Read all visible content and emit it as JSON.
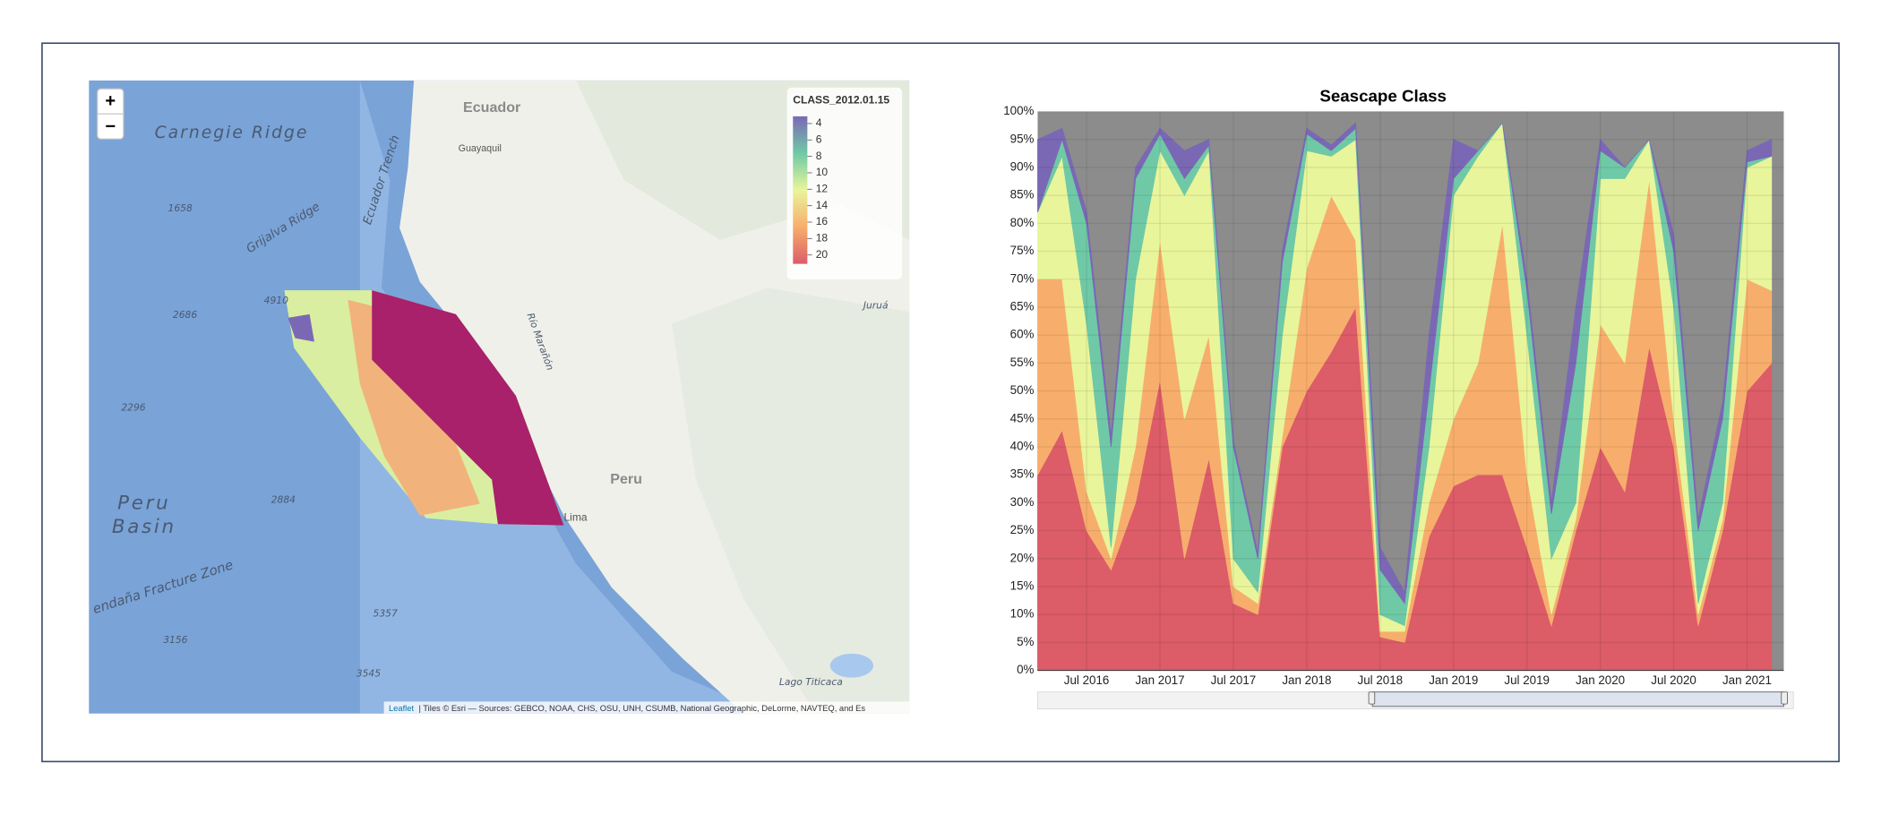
{
  "map": {
    "zoom_in": "+",
    "zoom_out": "−",
    "labels": [
      "Carnegie Ridge",
      "Ecuador",
      "Guayaquil",
      "Grijalva Ridge",
      "Ecuador Trench",
      "Peru",
      "Lima",
      "Peru",
      "Basin",
      "endaña Fracture Zone",
      "Lago Titicaca",
      "Juruá",
      "Río Marañón"
    ],
    "depths": [
      "1658",
      "2686",
      "4910",
      "2296",
      "2884",
      "5357",
      "3156",
      "3545"
    ],
    "legend": {
      "title": "CLASS_2012.01.15",
      "labels": [
        "4",
        "6",
        "8",
        "10",
        "12",
        "14",
        "16",
        "18",
        "20"
      ]
    },
    "attribution_link": "Leaflet",
    "attribution": "| Tiles © Esri — Sources: GEBCO, NOAA, CHS, OSU, UNH, CSUMB, National Geographic, DeLorme, NAVTEQ, and Es"
  },
  "chart_data": {
    "type": "stacked_area",
    "title": "Seascape Class",
    "x": [
      "2016-03",
      "2016-05",
      "2016-07",
      "2016-09",
      "2016-11",
      "2017-01",
      "2017-03",
      "2017-05",
      "2017-07",
      "2017-09",
      "2017-11",
      "2018-01",
      "2018-03",
      "2018-05",
      "2018-07",
      "2018-09",
      "2018-11",
      "2019-01",
      "2019-03",
      "2019-05",
      "2019-07",
      "2019-09",
      "2019-11",
      "2020-01",
      "2020-03",
      "2020-05",
      "2020-07",
      "2020-09",
      "2020-11",
      "2021-01",
      "2021-03"
    ],
    "series": [
      {
        "color": "#dc5c68",
        "values": [
          35,
          43,
          25,
          18,
          30,
          52,
          20,
          38,
          12,
          10,
          40,
          50,
          57,
          65,
          6,
          5,
          24,
          33,
          35,
          35,
          22,
          8,
          25,
          40,
          32,
          58,
          40,
          8,
          25,
          50,
          55
        ]
      },
      {
        "color": "#f7ae6c",
        "values": [
          35,
          27,
          7,
          2,
          10,
          25,
          25,
          22,
          3,
          2,
          2,
          22,
          28,
          12,
          1,
          2,
          6,
          12,
          20,
          45,
          13,
          2,
          2,
          22,
          23,
          30,
          5,
          2,
          2,
          20,
          13
        ]
      },
      {
        "color": "#e9f59b",
        "values": [
          12,
          22,
          30,
          2,
          30,
          16,
          40,
          33,
          5,
          2,
          18,
          21,
          7,
          18,
          3,
          1,
          10,
          40,
          37,
          18,
          25,
          10,
          3,
          26,
          33,
          7,
          20,
          2,
          3,
          20,
          24
        ]
      },
      {
        "color": "#6fc9a6",
        "values": [
          0,
          3,
          18,
          18,
          18,
          3,
          3,
          1,
          20,
          6,
          13,
          3,
          1,
          2,
          8,
          4,
          10,
          3,
          1,
          0,
          8,
          8,
          25,
          5,
          2,
          0,
          10,
          13,
          15,
          1,
          0
        ]
      },
      {
        "color": "#7b68b5",
        "values": [
          13,
          2,
          2,
          2,
          2,
          1,
          5,
          1,
          1,
          1,
          2,
          1,
          1,
          1,
          4,
          2,
          10,
          7,
          0,
          0,
          2,
          2,
          10,
          2,
          0,
          0,
          3,
          2,
          3,
          2,
          3
        ]
      }
    ],
    "xlim": [
      "2016-03",
      "2021-04"
    ],
    "xticks": [
      {
        "value": "2016-07",
        "label": "Jul 2016"
      },
      {
        "value": "2017-01",
        "label": "Jan 2017"
      },
      {
        "value": "2017-07",
        "label": "Jul 2017"
      },
      {
        "value": "2018-01",
        "label": "Jan 2018"
      },
      {
        "value": "2018-07",
        "label": "Jul 2018"
      },
      {
        "value": "2019-01",
        "label": "Jan 2019"
      },
      {
        "value": "2019-07",
        "label": "Jul 2019"
      },
      {
        "value": "2020-01",
        "label": "Jan 2020"
      },
      {
        "value": "2020-07",
        "label": "Jul 2020"
      },
      {
        "value": "2021-01",
        "label": "Jan 2021"
      }
    ],
    "ylim": [
      0,
      100
    ],
    "yticks": [
      {
        "value": 0,
        "label": "0%"
      },
      {
        "value": 5,
        "label": "5%"
      },
      {
        "value": 10,
        "label": "10%"
      },
      {
        "value": 15,
        "label": "15%"
      },
      {
        "value": 20,
        "label": "20%"
      },
      {
        "value": 25,
        "label": "25%"
      },
      {
        "value": 30,
        "label": "30%"
      },
      {
        "value": 35,
        "label": "35%"
      },
      {
        "value": 40,
        "label": "40%"
      },
      {
        "value": 45,
        "label": "45%"
      },
      {
        "value": 50,
        "label": "50%"
      },
      {
        "value": 55,
        "label": "55%"
      },
      {
        "value": 60,
        "label": "60%"
      },
      {
        "value": 65,
        "label": "65%"
      },
      {
        "value": 70,
        "label": "70%"
      },
      {
        "value": 75,
        "label": "75%"
      },
      {
        "value": 80,
        "label": "80%"
      },
      {
        "value": 85,
        "label": "85%"
      },
      {
        "value": 90,
        "label": "90%"
      },
      {
        "value": 95,
        "label": "95%"
      },
      {
        "value": 100,
        "label": "100%"
      }
    ],
    "grid": true
  }
}
